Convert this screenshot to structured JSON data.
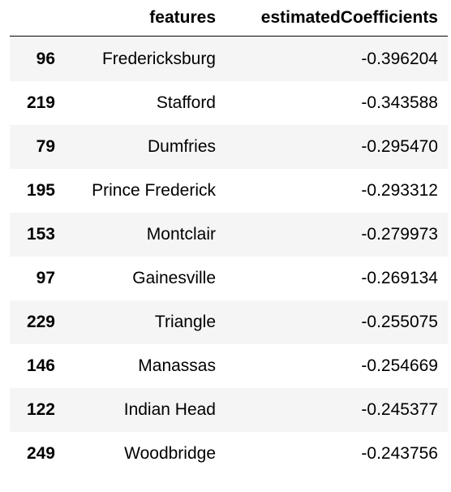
{
  "table": {
    "columns": [
      "",
      "features",
      "estimatedCoefficients"
    ],
    "rows": [
      {
        "index": "96",
        "feature": "Fredericksburg",
        "coef": "-0.396204"
      },
      {
        "index": "219",
        "feature": "Stafford",
        "coef": "-0.343588"
      },
      {
        "index": "79",
        "feature": "Dumfries",
        "coef": "-0.295470"
      },
      {
        "index": "195",
        "feature": "Prince Frederick",
        "coef": "-0.293312"
      },
      {
        "index": "153",
        "feature": "Montclair",
        "coef": "-0.279973"
      },
      {
        "index": "97",
        "feature": "Gainesville",
        "coef": "-0.269134"
      },
      {
        "index": "229",
        "feature": "Triangle",
        "coef": "-0.255075"
      },
      {
        "index": "146",
        "feature": "Manassas",
        "coef": "-0.254669"
      },
      {
        "index": "122",
        "feature": "Indian Head",
        "coef": "-0.245377"
      },
      {
        "index": "249",
        "feature": "Woodbridge",
        "coef": "-0.243756"
      }
    ]
  }
}
